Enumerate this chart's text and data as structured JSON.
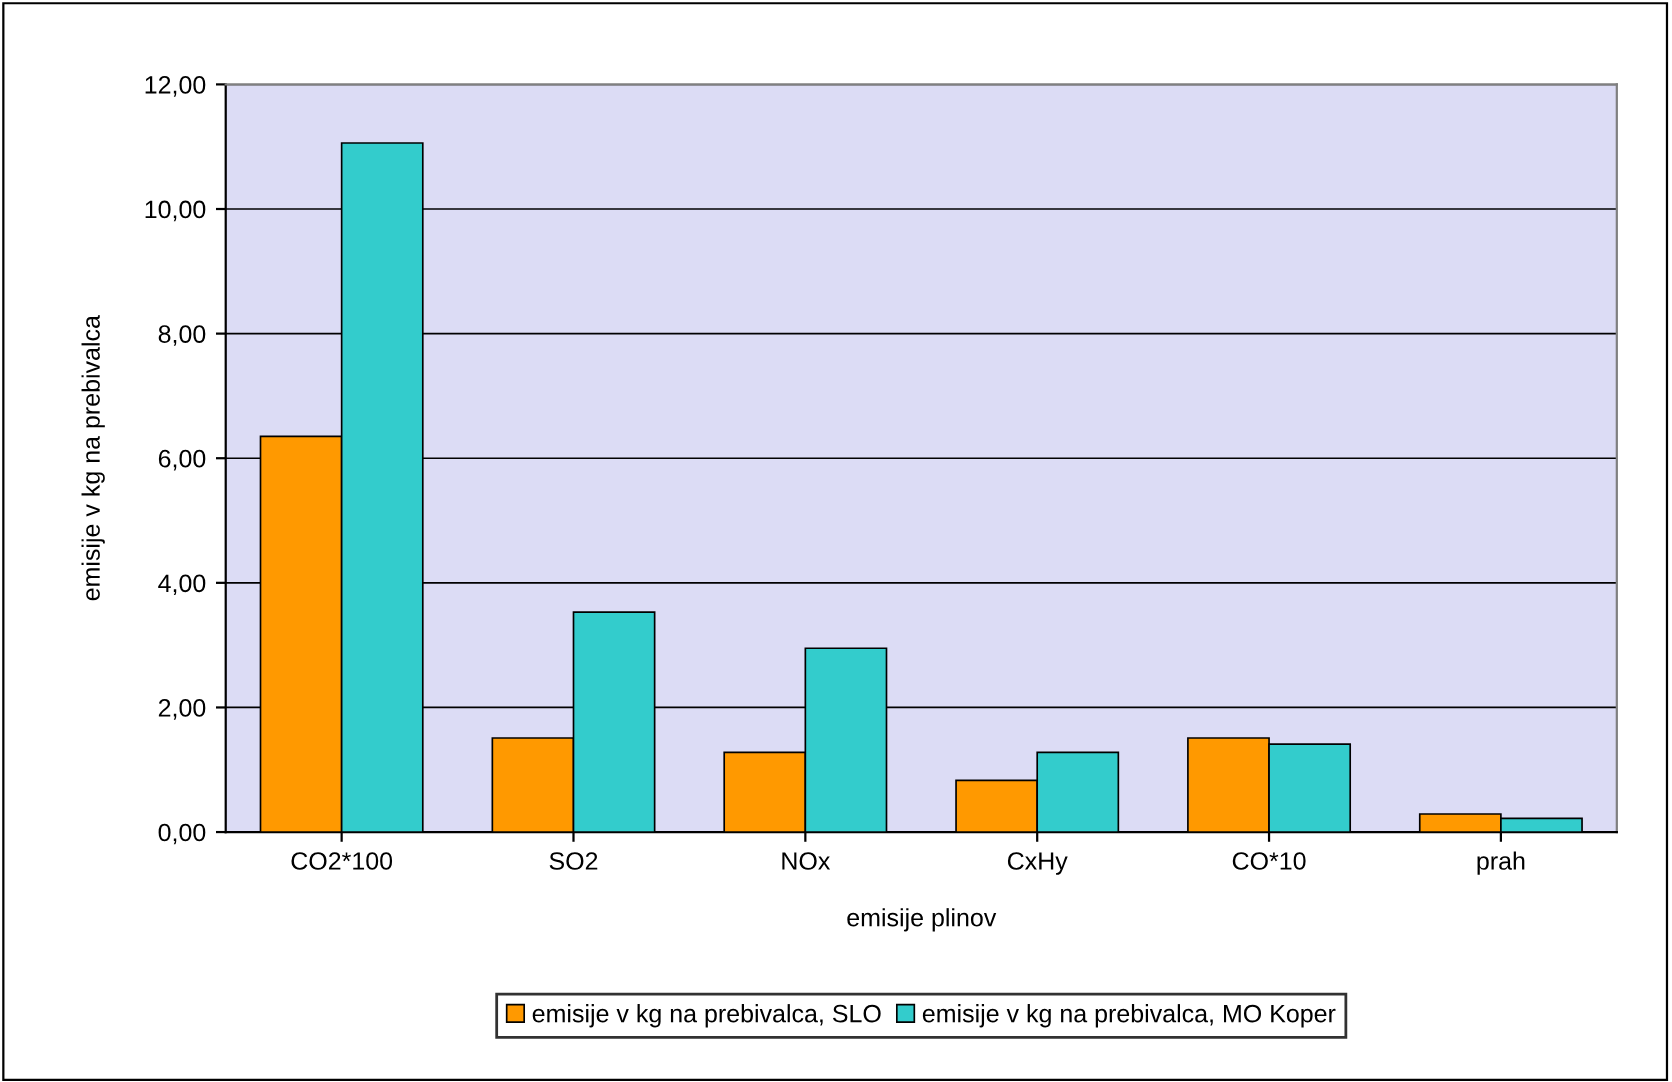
{
  "chart_data": {
    "type": "bar",
    "xlabel": "emisije plinov",
    "ylabel": "emisije v kg na prebivalca",
    "categories": [
      "CO2*100",
      "SO2",
      "NOx",
      "CxHy",
      "CO*10",
      "prah"
    ],
    "series": [
      {
        "name": "emisije v kg na prebivalca, SLO",
        "color": "#ff9900",
        "values": [
          6.35,
          1.51,
          1.28,
          0.83,
          1.51,
          0.29
        ]
      },
      {
        "name": "emisije v kg na prebivalca, MO Koper",
        "color": "#33cccc",
        "values": [
          11.06,
          3.53,
          2.95,
          1.28,
          1.41,
          0.22
        ]
      }
    ],
    "ylim": [
      0,
      12
    ],
    "yticks": [
      {
        "value": 0,
        "label": "0,00"
      },
      {
        "value": 2,
        "label": "2,00"
      },
      {
        "value": 4,
        "label": "4,00"
      },
      {
        "value": 6,
        "label": "6,00"
      },
      {
        "value": 8,
        "label": "8,00"
      },
      {
        "value": 10,
        "label": "10,00"
      },
      {
        "value": 12,
        "label": "12,00"
      }
    ],
    "grid": "y",
    "legend": "bottom"
  }
}
